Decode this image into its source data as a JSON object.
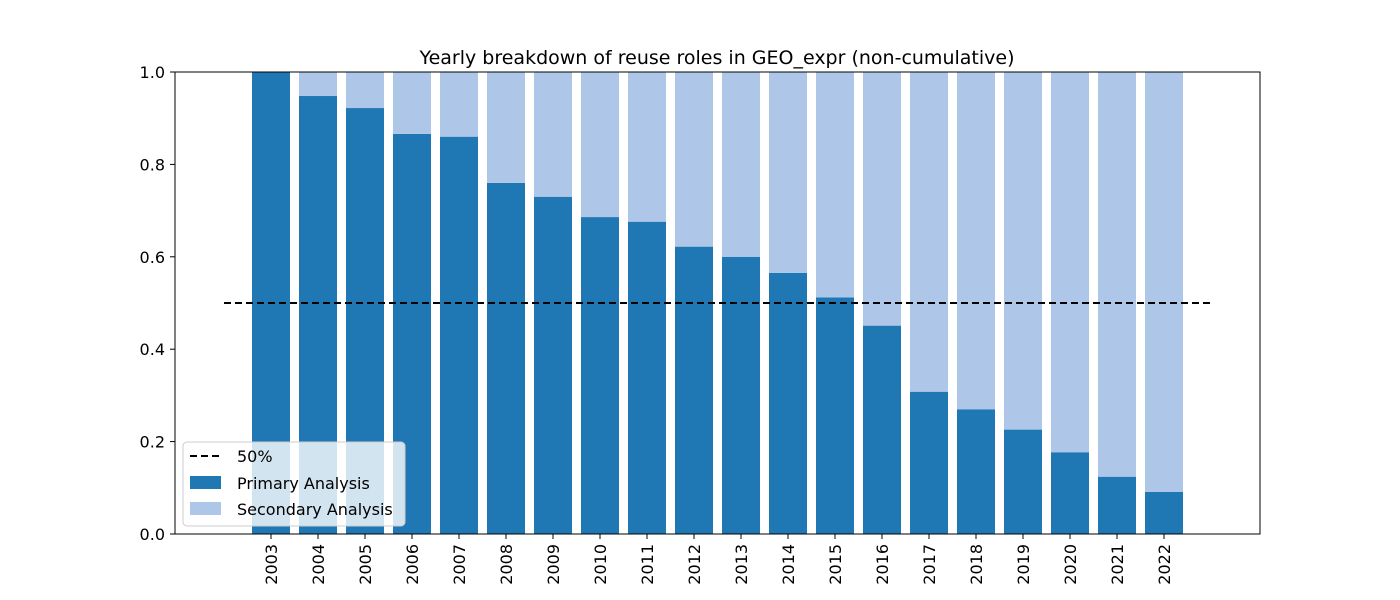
{
  "chart_data": {
    "type": "bar",
    "stacked": true,
    "normalized": true,
    "title": "Yearly breakdown of reuse roles in GEO_expr (non-cumulative)",
    "xlabel": "",
    "ylabel": "",
    "categories": [
      "2003",
      "2004",
      "2005",
      "2006",
      "2007",
      "2008",
      "2009",
      "2010",
      "2011",
      "2012",
      "2013",
      "2014",
      "2015",
      "2016",
      "2017",
      "2018",
      "2019",
      "2020",
      "2021",
      "2022"
    ],
    "series": [
      {
        "name": "Primary Analysis",
        "color": "#1f77b4",
        "values": [
          1.0,
          0.948,
          0.922,
          0.866,
          0.86,
          0.76,
          0.73,
          0.686,
          0.676,
          0.622,
          0.6,
          0.565,
          0.512,
          0.451,
          0.308,
          0.27,
          0.226,
          0.177,
          0.124,
          0.091
        ]
      },
      {
        "name": "Secondary Analysis",
        "color": "#aec7e8",
        "values": [
          0.0,
          0.052,
          0.078,
          0.134,
          0.14,
          0.24,
          0.27,
          0.314,
          0.324,
          0.378,
          0.4,
          0.435,
          0.488,
          0.549,
          0.692,
          0.73,
          0.774,
          0.823,
          0.876,
          0.909
        ]
      }
    ],
    "reference_line": {
      "name": "50%",
      "value": 0.5,
      "style": "dashed",
      "color": "#000000"
    },
    "ylim": [
      0,
      1.0
    ],
    "yticks": [
      "0.0",
      "0.2",
      "0.4",
      "0.6",
      "0.8",
      "1.0"
    ],
    "grid": false,
    "legend_position": "lower-left"
  }
}
